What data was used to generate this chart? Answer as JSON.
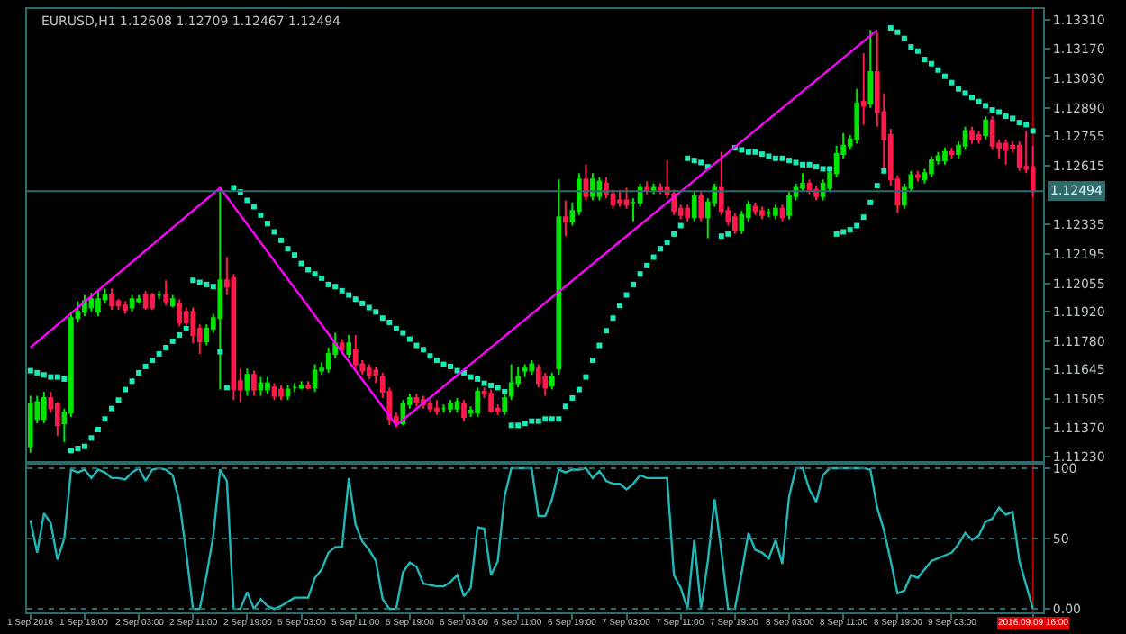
{
  "chart_data": [
    {
      "type": "candlestick",
      "title": "EURUSD,H1 1.12608 1.12709 1.12467 1.12494",
      "categories": [
        "1 Sep 2016",
        null,
        null,
        null,
        null,
        null,
        null,
        null,
        "1 Sep 19:00",
        null,
        null,
        null,
        null,
        null,
        null,
        null,
        "2 Sep 03:00",
        null,
        null,
        null,
        null,
        null,
        null,
        null,
        "2 Sep 11:00",
        null,
        null,
        null,
        null,
        null,
        null,
        null,
        "2 Sep 19:00",
        null,
        null,
        null,
        null,
        null,
        null,
        null,
        "5 Sep 03:00",
        null,
        null,
        null,
        null,
        null,
        null,
        null,
        "5 Sep 11:00",
        null,
        null,
        null,
        null,
        null,
        null,
        null,
        "5 Sep 19:00",
        null,
        null,
        null,
        null,
        null,
        null,
        null,
        "6 Sep 03:00",
        null,
        null,
        null,
        null,
        null,
        null,
        null,
        "6 Sep 11:00",
        null,
        null,
        null,
        null,
        null,
        null,
        null,
        "6 Sep 19:00",
        null,
        null,
        null,
        null,
        null,
        null,
        null,
        "7 Sep 03:00",
        null,
        null,
        null,
        null,
        null,
        null,
        null,
        "7 Sep 11:00",
        null,
        null,
        null,
        null,
        null,
        null,
        null,
        "7 Sep 19:00",
        null,
        null,
        null,
        null,
        null,
        null,
        null,
        "8 Sep 03:00",
        null,
        null,
        null,
        null,
        null,
        null,
        null,
        "8 Sep 11:00",
        null,
        null,
        null,
        null,
        null,
        null,
        null,
        "8 Sep 19:00",
        null,
        null,
        null,
        null,
        null,
        null,
        null,
        "9 Sep 03:00",
        null,
        null,
        null,
        null,
        null,
        null,
        null,
        null,
        null,
        null,
        null,
        "2016.09.09 16:00"
      ],
      "ohlc": [
        [
          1.1128,
          1.1152,
          1.1125,
          1.1148
        ],
        [
          1.1141,
          1.1152,
          1.1139,
          1.1149
        ],
        [
          1.1141,
          1.1154,
          1.1139,
          1.1151
        ],
        [
          1.1151,
          1.1154,
          1.1144,
          1.1146
        ],
        [
          1.1148,
          1.1149,
          1.1133,
          1.1138
        ],
        [
          1.1139,
          1.1146,
          1.113,
          1.1144
        ],
        [
          1.1144,
          1.1192,
          1.1142,
          1.1189
        ],
        [
          1.1189,
          1.1197,
          1.1187,
          1.1192
        ],
        [
          1.1192,
          1.12,
          1.119,
          1.1197
        ],
        [
          1.1194,
          1.1201,
          1.1192,
          1.1198
        ],
        [
          1.1192,
          1.1202,
          1.119,
          1.1198
        ],
        [
          1.1198,
          1.1203,
          1.1196,
          1.12
        ],
        [
          1.12,
          1.1203,
          1.1193,
          1.1195
        ],
        [
          1.1197,
          1.1198,
          1.1193,
          1.1195
        ],
        [
          1.1195,
          1.1197,
          1.1191,
          1.1193
        ],
        [
          1.1194,
          1.12,
          1.1192,
          1.1198
        ],
        [
          1.1197,
          1.12,
          1.1196,
          1.1198
        ],
        [
          1.12,
          1.1202,
          1.1193,
          1.1194
        ],
        [
          1.12,
          1.1201,
          1.1193,
          1.1194
        ],
        [
          1.12,
          1.1202,
          1.1198,
          1.12
        ],
        [
          1.12,
          1.1207,
          1.1195,
          1.1197
        ],
        [
          1.1195,
          1.12,
          1.1194,
          1.1198
        ],
        [
          1.1196,
          1.1198,
          1.1185,
          1.1187
        ],
        [
          1.1192,
          1.1194,
          1.1185,
          1.1187
        ],
        [
          1.1192,
          1.1194,
          1.1177,
          1.1181
        ],
        [
          1.1184,
          1.1186,
          1.1172,
          1.1178
        ],
        [
          1.1178,
          1.1186,
          1.1176,
          1.1184
        ],
        [
          1.1184,
          1.1191,
          1.1182,
          1.1189
        ],
        [
          1.1189,
          1.1251,
          1.1155,
          1.1207
        ],
        [
          1.1207,
          1.1218,
          1.12,
          1.1204
        ],
        [
          1.1208,
          1.121,
          1.115,
          1.1155
        ],
        [
          1.1159,
          1.1165,
          1.1149,
          1.1155
        ],
        [
          1.1155,
          1.1165,
          1.1152,
          1.1162
        ],
        [
          1.1162,
          1.1164,
          1.1152,
          1.1155
        ],
        [
          1.1155,
          1.1161,
          1.1152,
          1.1158
        ],
        [
          1.1155,
          1.1161,
          1.1153,
          1.1158
        ],
        [
          1.1156,
          1.1158,
          1.115,
          1.1152
        ],
        [
          1.1155,
          1.1157,
          1.115,
          1.1152
        ],
        [
          1.1152,
          1.1157,
          1.115,
          1.1155
        ],
        [
          1.1156,
          1.1158,
          1.1154,
          1.1156
        ],
        [
          1.1156,
          1.1159,
          1.1155,
          1.1157
        ],
        [
          1.1157,
          1.1159,
          1.1155,
          1.1156
        ],
        [
          1.1156,
          1.1167,
          1.1154,
          1.1164
        ],
        [
          1.1164,
          1.1168,
          1.1162,
          1.1165
        ],
        [
          1.1165,
          1.1175,
          1.1163,
          1.1172
        ],
        [
          1.1172,
          1.1182,
          1.117,
          1.1177
        ],
        [
          1.1177,
          1.1179,
          1.1172,
          1.1174
        ],
        [
          1.1172,
          1.1181,
          1.117,
          1.1177
        ],
        [
          1.1174,
          1.1181,
          1.1165,
          1.1167
        ],
        [
          1.1167,
          1.1169,
          1.1162,
          1.1164
        ],
        [
          1.1165,
          1.1167,
          1.116,
          1.1162
        ],
        [
          1.1164,
          1.1166,
          1.1158,
          1.1162
        ],
        [
          1.1161,
          1.1163,
          1.1151,
          1.1154
        ],
        [
          1.1154,
          1.1156,
          1.1138,
          1.1141
        ],
        [
          1.1142,
          1.1144,
          1.1137,
          1.1139
        ],
        [
          1.1139,
          1.115,
          1.1138,
          1.1148
        ],
        [
          1.1148,
          1.1153,
          1.1146,
          1.1151
        ],
        [
          1.1151,
          1.1153,
          1.1147,
          1.1149
        ],
        [
          1.115,
          1.1152,
          1.1146,
          1.1148
        ],
        [
          1.1148,
          1.115,
          1.1144,
          1.1146
        ],
        [
          1.1146,
          1.115,
          1.1143,
          1.1145
        ],
        [
          1.1146,
          1.1148,
          1.1144,
          1.1146
        ],
        [
          1.1146,
          1.115,
          1.1144,
          1.1148
        ],
        [
          1.1146,
          1.1151,
          1.1144,
          1.1149
        ],
        [
          1.1148,
          1.115,
          1.114,
          1.1142
        ],
        [
          1.1144,
          1.1147,
          1.1142,
          1.1145
        ],
        [
          1.1144,
          1.1156,
          1.1142,
          1.1154
        ],
        [
          1.1154,
          1.1156,
          1.1151,
          1.1153
        ],
        [
          1.1153,
          1.1155,
          1.1144,
          1.1145
        ],
        [
          1.1146,
          1.1148,
          1.1143,
          1.1145
        ],
        [
          1.1145,
          1.1153,
          1.1143,
          1.1151
        ],
        [
          1.1152,
          1.1167,
          1.115,
          1.1158
        ],
        [
          1.1158,
          1.1166,
          1.1156,
          1.1161
        ],
        [
          1.1164,
          1.1167,
          1.1161,
          1.1165
        ],
        [
          1.1164,
          1.1169,
          1.1162,
          1.1167
        ],
        [
          1.1165,
          1.1167,
          1.1156,
          1.1158
        ],
        [
          1.1161,
          1.1163,
          1.1152,
          1.1156
        ],
        [
          1.1157,
          1.1163,
          1.1155,
          1.1161
        ],
        [
          1.1165,
          1.1255,
          1.1162,
          1.1237
        ],
        [
          1.1237,
          1.1245,
          1.1228,
          1.1235
        ],
        [
          1.1235,
          1.1244,
          1.1233,
          1.124
        ],
        [
          1.124,
          1.1258,
          1.1238,
          1.1255
        ],
        [
          1.1255,
          1.1262,
          1.1245,
          1.1247
        ],
        [
          1.1247,
          1.1258,
          1.1245,
          1.1255
        ],
        [
          1.1247,
          1.1256,
          1.1245,
          1.1254
        ],
        [
          1.1253,
          1.1256,
          1.1246,
          1.1248
        ],
        [
          1.1248,
          1.125,
          1.1241,
          1.1243
        ],
        [
          1.1245,
          1.125,
          1.1242,
          1.1244
        ],
        [
          1.1245,
          1.1251,
          1.1241,
          1.1243
        ],
        [
          1.1244,
          1.1246,
          1.1235,
          1.1244
        ],
        [
          1.1244,
          1.1253,
          1.1242,
          1.1251
        ],
        [
          1.1251,
          1.1254,
          1.1248,
          1.125
        ],
        [
          1.125,
          1.1253,
          1.1248,
          1.1251
        ],
        [
          1.1251,
          1.1253,
          1.1248,
          1.125
        ],
        [
          1.1251,
          1.1264,
          1.1246,
          1.1248
        ],
        [
          1.1248,
          1.125,
          1.1238,
          1.124
        ],
        [
          1.1241,
          1.1243,
          1.1236,
          1.1238
        ],
        [
          1.1241,
          1.1243,
          1.1235,
          1.1237
        ],
        [
          1.1237,
          1.1249,
          1.1235,
          1.1247
        ],
        [
          1.1247,
          1.1249,
          1.1235,
          1.1237
        ],
        [
          1.1237,
          1.1246,
          1.1227,
          1.1244
        ],
        [
          1.1244,
          1.1253,
          1.1242,
          1.1251
        ],
        [
          1.1251,
          1.1268,
          1.1238,
          1.124
        ],
        [
          1.124,
          1.1242,
          1.1233,
          1.1235
        ],
        [
          1.1237,
          1.1239,
          1.1229,
          1.1231
        ],
        [
          1.1231,
          1.124,
          1.1229,
          1.1238
        ],
        [
          1.1237,
          1.1245,
          1.1235,
          1.1243
        ],
        [
          1.1242,
          1.1244,
          1.1238,
          1.124
        ],
        [
          1.124,
          1.1242,
          1.1236,
          1.1238
        ],
        [
          1.1239,
          1.1241,
          1.1237,
          1.1239
        ],
        [
          1.1238,
          1.1243,
          1.1236,
          1.1241
        ],
        [
          1.1241,
          1.1243,
          1.1235,
          1.1237
        ],
        [
          1.1238,
          1.1249,
          1.1236,
          1.1247
        ],
        [
          1.1247,
          1.1253,
          1.1245,
          1.1251
        ],
        [
          1.1251,
          1.1258,
          1.1249,
          1.1253
        ],
        [
          1.1253,
          1.1255,
          1.1248,
          1.125
        ],
        [
          1.125,
          1.1252,
          1.1245,
          1.1247
        ],
        [
          1.1247,
          1.1255,
          1.1245,
          1.1253
        ],
        [
          1.1251,
          1.1261,
          1.1249,
          1.1258
        ],
        [
          1.1258,
          1.1271,
          1.1256,
          1.1267
        ],
        [
          1.1267,
          1.1277,
          1.1265,
          1.1271
        ],
        [
          1.1271,
          1.1276,
          1.1269,
          1.1274
        ],
        [
          1.1274,
          1.1298,
          1.1272,
          1.1291
        ],
        [
          1.1292,
          1.1315,
          1.1281,
          1.129
        ],
        [
          1.1291,
          1.1326,
          1.1289,
          1.1306
        ],
        [
          1.1306,
          1.1325,
          1.128,
          1.1287
        ],
        [
          1.1287,
          1.1296,
          1.126,
          1.1274
        ],
        [
          1.1276,
          1.1279,
          1.1252,
          1.1255
        ],
        [
          1.1255,
          1.1257,
          1.1239,
          1.1243
        ],
        [
          1.1243,
          1.1253,
          1.1241,
          1.1251
        ],
        [
          1.1251,
          1.1259,
          1.1249,
          1.1257
        ],
        [
          1.1257,
          1.1259,
          1.1254,
          1.1256
        ],
        [
          1.1255,
          1.126,
          1.1253,
          1.1258
        ],
        [
          1.1258,
          1.1266,
          1.1256,
          1.1264
        ],
        [
          1.1264,
          1.1268,
          1.1262,
          1.1266
        ],
        [
          1.1264,
          1.127,
          1.1262,
          1.1268
        ],
        [
          1.1268,
          1.127,
          1.1265,
          1.1267
        ],
        [
          1.1267,
          1.1273,
          1.1265,
          1.1271
        ],
        [
          1.1271,
          1.128,
          1.1269,
          1.1278
        ],
        [
          1.1278,
          1.128,
          1.1272,
          1.1274
        ],
        [
          1.1276,
          1.1278,
          1.1272,
          1.1274
        ],
        [
          1.1276,
          1.1285,
          1.1274,
          1.1283
        ],
        [
          1.1283,
          1.1285,
          1.1269,
          1.1271
        ],
        [
          1.1272,
          1.1274,
          1.1265,
          1.127
        ],
        [
          1.1272,
          1.1274,
          1.1262,
          1.1269
        ],
        [
          1.1271,
          1.1273,
          1.1268,
          1.127
        ],
        [
          1.1271,
          1.1273,
          1.1259,
          1.1261
        ],
        [
          1.1261,
          1.1278,
          1.1258,
          1.126
        ],
        [
          1.12608,
          1.12709,
          1.12467,
          1.12494
        ]
      ],
      "series": [
        {
          "type": "scatter",
          "color": "#1de9b6",
          "marker": "square",
          "values": [
            1.1164,
            1.1163,
            1.1162,
            1.1161,
            1.1161,
            1.116,
            1.1126,
            1.1127,
            1.1128,
            1.1132,
            1.1136,
            1.1141,
            1.1146,
            1.115,
            1.1155,
            1.1159,
            1.1163,
            1.1166,
            1.1169,
            1.1172,
            1.1175,
            1.1178,
            1.1181,
            1.1184,
            1.1207,
            1.1206,
            1.1205,
            1.1204,
            1.1173,
            1.1156,
            1.1251,
            1.1249,
            1.1245,
            1.1242,
            1.1238,
            1.1234,
            1.123,
            1.1226,
            1.1222,
            1.1219,
            1.1215,
            1.1212,
            1.121,
            1.1208,
            1.1205,
            1.1204,
            1.1202,
            1.12,
            1.1198,
            1.1196,
            1.1194,
            1.1192,
            1.1189,
            1.1187,
            1.1184,
            1.1182,
            1.1179,
            1.1176,
            1.1174,
            1.1171,
            1.1169,
            1.1167,
            1.1166,
            1.1164,
            1.1163,
            1.1161,
            1.116,
            1.1158,
            1.1157,
            1.1156,
            1.1154,
            1.1138,
            1.1138,
            1.1139,
            1.114,
            1.114,
            1.1141,
            1.1141,
            1.1141,
            1.1147,
            1.1151,
            1.1155,
            1.1161,
            1.1169,
            1.1176,
            1.1183,
            1.1189,
            1.1195,
            1.12,
            1.1205,
            1.121,
            1.1214,
            1.1218,
            1.1222,
            1.1225,
            1.1229,
            1.1233,
            1.1265,
            1.1264,
            1.1263,
            1.1261,
            null,
            1.1228,
            1.1229,
            1.127,
            1.1269,
            1.1268,
            1.1268,
            1.1267,
            1.1266,
            1.1265,
            1.1265,
            1.1264,
            1.1263,
            1.1262,
            1.1262,
            1.1261,
            1.126,
            1.126,
            1.1229,
            1.123,
            1.1231,
            1.1233,
            1.1237,
            1.1244,
            1.1252,
            1.1259,
            1.1327,
            1.1325,
            1.1322,
            1.1318,
            1.1316,
            1.1312,
            1.131,
            1.1307,
            1.1304,
            1.1301,
            1.1298,
            1.1296,
            1.1294,
            1.1292,
            1.129,
            1.1288,
            1.1287,
            1.1285,
            1.1284,
            1.1282,
            1.1281,
            1.1278
          ]
        },
        {
          "type": "line",
          "color": "#ff00ff",
          "line_style": "solid",
          "values": [
            1.1175,
            null,
            null,
            null,
            null,
            null,
            null,
            null,
            null,
            null,
            null,
            null,
            null,
            null,
            null,
            null,
            null,
            null,
            null,
            null,
            null,
            null,
            null,
            null,
            null,
            null,
            null,
            null,
            1.1251,
            null,
            null,
            null,
            null,
            null,
            null,
            null,
            null,
            null,
            null,
            null,
            null,
            null,
            null,
            null,
            null,
            null,
            null,
            null,
            null,
            null,
            null,
            null,
            null,
            null,
            1.1138,
            null,
            null,
            null,
            null,
            null,
            null,
            null,
            null,
            null,
            null,
            null,
            null,
            null,
            null,
            null,
            null,
            null,
            null,
            null,
            null,
            null,
            null,
            null,
            null,
            null,
            null,
            null,
            null,
            null,
            null,
            null,
            null,
            null,
            null,
            null,
            null,
            null,
            null,
            null,
            null,
            null,
            null,
            null,
            null,
            null,
            null,
            null,
            null,
            null,
            null,
            null,
            null,
            null,
            null,
            null,
            null,
            null,
            null,
            null,
            null,
            null,
            null,
            null,
            null,
            null,
            null,
            null,
            null,
            null,
            null,
            1.1326,
            null,
            null,
            null,
            null,
            null,
            null,
            null,
            null,
            null,
            null,
            null,
            null,
            null,
            null,
            null,
            null,
            null,
            null,
            null,
            null,
            null,
            null,
            null
          ]
        }
      ],
      "ylim": [
        1.1121,
        1.1336
      ],
      "yticks": [
        {
          "value": 1.1331,
          "label": "1.13310"
        },
        {
          "value": 1.1317,
          "label": "1.13170"
        },
        {
          "value": 1.1303,
          "label": "1.13030"
        },
        {
          "value": 1.1289,
          "label": "1.12890"
        },
        {
          "value": 1.12755,
          "label": "1.12755"
        },
        {
          "value": 1.12615,
          "label": "1.12615"
        },
        {
          "value": 1.12335,
          "label": "1.12335"
        },
        {
          "value": 1.12195,
          "label": "1.12195"
        },
        {
          "value": 1.12055,
          "label": "1.12055"
        },
        {
          "value": 1.1192,
          "label": "1.11920"
        },
        {
          "value": 1.1178,
          "label": "1.11780"
        },
        {
          "value": 1.11645,
          "label": "1.11645"
        },
        {
          "value": 1.11505,
          "label": "1.11505"
        },
        {
          "value": 1.1137,
          "label": "1.11370"
        },
        {
          "value": 1.1123,
          "label": "1.11230"
        }
      ],
      "ref_lines": [
        {
          "axis": "y",
          "value": 1.12494,
          "label": "1.12494",
          "color": "#2e6b6b",
          "line_style": "solid"
        },
        {
          "axis": "x",
          "value": "2016.09.09 16:00",
          "color": "#b00000",
          "line_style": "solid"
        }
      ],
      "tick_labels": "y",
      "grid": false
    },
    {
      "type": "line",
      "categories": [
        "1 Sep 2016",
        null,
        null,
        null,
        null,
        null,
        null,
        null,
        "1 Sep 19:00",
        null,
        null,
        null,
        null,
        null,
        null,
        null,
        "2 Sep 03:00",
        null,
        null,
        null,
        null,
        null,
        null,
        null,
        "2 Sep 11:00",
        null,
        null,
        null,
        null,
        null,
        null,
        null,
        "2 Sep 19:00",
        null,
        null,
        null,
        null,
        null,
        null,
        null,
        "5 Sep 03:00",
        null,
        null,
        null,
        null,
        null,
        null,
        null,
        "5 Sep 11:00",
        null,
        null,
        null,
        null,
        null,
        null,
        null,
        "5 Sep 19:00",
        null,
        null,
        null,
        null,
        null,
        null,
        null,
        "6 Sep 03:00",
        null,
        null,
        null,
        null,
        null,
        null,
        null,
        "6 Sep 11:00",
        null,
        null,
        null,
        null,
        null,
        null,
        null,
        "6 Sep 19:00",
        null,
        null,
        null,
        null,
        null,
        null,
        null,
        "7 Sep 03:00",
        null,
        null,
        null,
        null,
        null,
        null,
        null,
        "7 Sep 11:00",
        null,
        null,
        null,
        null,
        null,
        null,
        null,
        "7 Sep 19:00",
        null,
        null,
        null,
        null,
        null,
        null,
        null,
        "8 Sep 03:00",
        null,
        null,
        null,
        null,
        null,
        null,
        null,
        "8 Sep 11:00",
        null,
        null,
        null,
        null,
        null,
        null,
        null,
        "8 Sep 19:00",
        null,
        null,
        null,
        null,
        null,
        null,
        null,
        "9 Sep 03:00",
        null,
        null,
        null,
        null,
        null,
        null,
        null,
        null,
        null,
        null,
        null,
        "2016.09.09 16:00"
      ],
      "series": [
        {
          "color": "#20b8b8",
          "line_style": "solid",
          "values": [
            63,
            40,
            68,
            61,
            35,
            50,
            99,
            97,
            99,
            93,
            99,
            97,
            93,
            93,
            92,
            97,
            100,
            91,
            99,
            100,
            99,
            95,
            76,
            40,
            0,
            0,
            24,
            52,
            99,
            91,
            0,
            0,
            12,
            0,
            7,
            2,
            0,
            2,
            5,
            8,
            8,
            8,
            22,
            28,
            40,
            44,
            44,
            93,
            60,
            48,
            42,
            34,
            7,
            0,
            0,
            26,
            33,
            30,
            18,
            17,
            16,
            16,
            19,
            24,
            9,
            15,
            58,
            57,
            24,
            34,
            80,
            100,
            100,
            100,
            100,
            66,
            66,
            78,
            99,
            97,
            99,
            99,
            100,
            93,
            98,
            91,
            89,
            89,
            85,
            89,
            95,
            93,
            93,
            93,
            93,
            24,
            15,
            0,
            49,
            0,
            34,
            78,
            41,
            0,
            0,
            26,
            54,
            42,
            40,
            36,
            49,
            32,
            80,
            100,
            100,
            85,
            76,
            95,
            100,
            100,
            100,
            100,
            100,
            100,
            99,
            72,
            56,
            34,
            11,
            13,
            24,
            22,
            28,
            34,
            36,
            38,
            40,
            46,
            54,
            49,
            52,
            62,
            64,
            72,
            67,
            69,
            34,
            17,
            0
          ]
        }
      ],
      "ylim": [
        -2.5,
        102.5
      ],
      "yticks": [
        100,
        50,
        {
          "value": 0,
          "label": "0.00"
        }
      ],
      "ref_lines": [
        {
          "axis": "y",
          "value": 100,
          "color": "#2e6b6b",
          "line_style": "dotted"
        },
        {
          "axis": "y",
          "value": 50,
          "color": "#2e6b6b",
          "line_style": "dotted"
        },
        {
          "axis": "y",
          "value": 0,
          "color": "#2e6b6b",
          "line_style": "dotted"
        },
        {
          "axis": "x",
          "value": "2016.09.09 16:00",
          "color": "#b00000",
          "line_style": "solid"
        }
      ],
      "grid": false
    }
  ]
}
